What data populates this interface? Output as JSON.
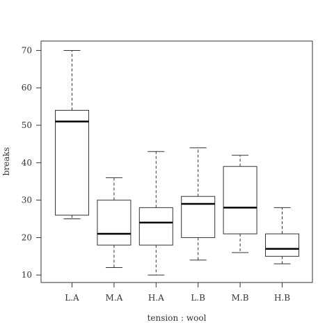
{
  "chart_data": {
    "type": "boxplot",
    "xlabel": "tension : wool",
    "ylabel": "breaks",
    "categories": [
      "L.A",
      "M.A",
      "H.A",
      "L.B",
      "M.B",
      "H.B"
    ],
    "ylim": [
      8,
      72.5
    ],
    "yticks": [
      "10",
      "20",
      "30",
      "40",
      "50",
      "60",
      "70"
    ],
    "grid": false,
    "boxes": [
      {
        "category": "L.A",
        "whisker_low": 25,
        "q1": 26,
        "median": 51,
        "q3": 54,
        "whisker_high": 70
      },
      {
        "category": "M.A",
        "whisker_low": 12,
        "q1": 18,
        "median": 21,
        "q3": 30,
        "whisker_high": 36
      },
      {
        "category": "H.A",
        "whisker_low": 10,
        "q1": 18,
        "median": 24,
        "q3": 28,
        "whisker_high": 43
      },
      {
        "category": "L.B",
        "whisker_low": 14,
        "q1": 20,
        "median": 29,
        "q3": 31,
        "whisker_high": 44
      },
      {
        "category": "M.B",
        "whisker_low": 16,
        "q1": 21,
        "median": 28,
        "q3": 39,
        "whisker_high": 42
      },
      {
        "category": "H.B",
        "whisker_low": 13,
        "q1": 15,
        "median": 17,
        "q3": 21,
        "whisker_high": 28
      }
    ]
  }
}
